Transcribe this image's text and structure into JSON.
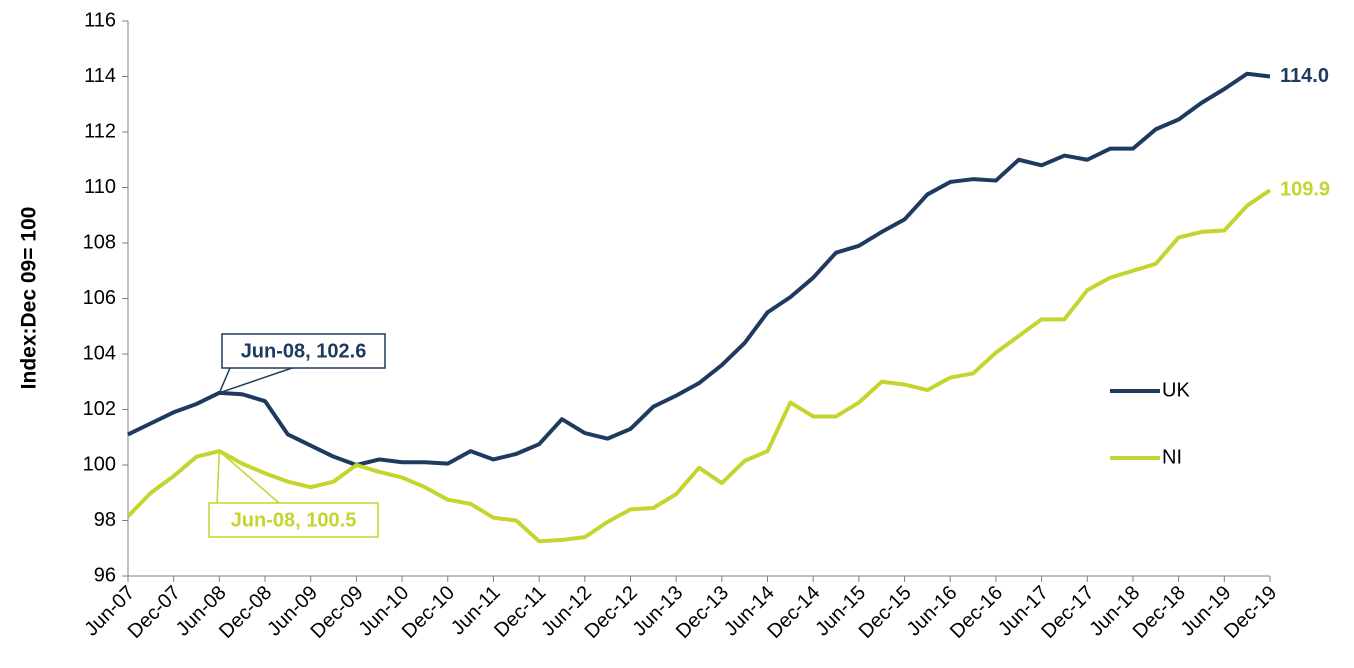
{
  "chart_data": {
    "type": "line",
    "y_label": "Index:Dec 09= 100",
    "categories": [
      "Jun-07",
      null,
      "Dec-07",
      null,
      "Jun-08",
      null,
      "Dec-08",
      null,
      "Jun-09",
      null,
      "Dec-09",
      null,
      "Jun-10",
      null,
      "Dec-10",
      null,
      "Jun-11",
      null,
      "Dec-11",
      null,
      "Jun-12",
      null,
      "Dec-12",
      null,
      "Jun-13",
      null,
      "Dec-13",
      null,
      "Jun-14",
      null,
      "Dec-14",
      null,
      "Jun-15",
      null,
      "Dec-15",
      null,
      "Jun-16",
      null,
      "Dec-16",
      null,
      "Jun-17",
      null,
      "Dec-17",
      null,
      "Jun-18",
      null,
      "Dec-18",
      null,
      "Jun-19",
      null,
      "Dec-19"
    ],
    "series": [
      {
        "name": "UK",
        "color": "#1f3a5f",
        "end_label": "114.0",
        "values": [
          101.1,
          101.5,
          101.9,
          102.2,
          102.6,
          102.55,
          102.3,
          101.1,
          100.7,
          100.3,
          100.0,
          100.2,
          100.1,
          100.1,
          100.05,
          100.5,
          100.2,
          100.4,
          100.75,
          101.65,
          101.15,
          100.95,
          101.3,
          102.1,
          102.5,
          102.95,
          103.6,
          104.4,
          105.5,
          106.05,
          106.75,
          107.65,
          107.9,
          108.4,
          108.85,
          109.75,
          110.2,
          110.3,
          110.25,
          111.0,
          110.8,
          111.15,
          111.0,
          111.4,
          111.4,
          112.1,
          112.45,
          113.05,
          113.55,
          114.1,
          114.0
        ]
      },
      {
        "name": "NI",
        "color": "#c5d42e",
        "end_label": "109.9",
        "values": [
          98.15,
          99.0,
          99.6,
          100.3,
          100.5,
          100.05,
          99.7,
          99.4,
          99.2,
          99.4,
          100.0,
          99.75,
          99.55,
          99.2,
          98.75,
          98.6,
          98.1,
          98.0,
          97.25,
          97.3,
          97.4,
          97.95,
          98.4,
          98.45,
          98.95,
          99.9,
          99.35,
          100.15,
          100.5,
          102.25,
          101.75,
          101.75,
          102.25,
          103.0,
          102.9,
          102.7,
          103.15,
          103.3,
          104.05,
          104.65,
          105.25,
          105.25,
          106.3,
          106.75,
          107.0,
          107.25,
          108.2,
          108.4,
          108.45,
          109.35,
          109.9
        ]
      }
    ],
    "annotations": [
      {
        "text": "Jun-08, 102.6"
      },
      {
        "text": "Jun-08, 100.5"
      }
    ],
    "ylim": [
      96,
      116
    ],
    "yticks": [
      96,
      98,
      100,
      102,
      104,
      106,
      108,
      110,
      112,
      114,
      116
    ],
    "legend": "right",
    "grid": false
  }
}
